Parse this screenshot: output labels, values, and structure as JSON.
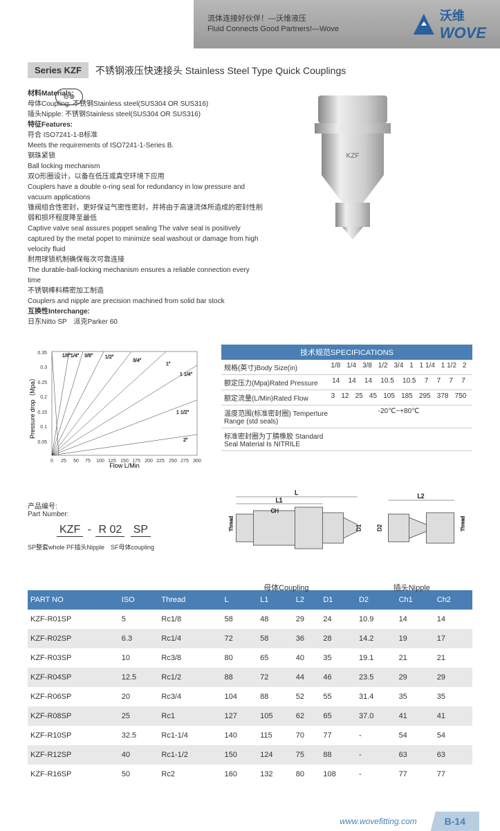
{
  "header": {
    "line1_cn": "流体连接好伙伴！—沃维液压",
    "line2_en": "Fluid Connects Good Partners!—Wove",
    "brand_cn": "沃维",
    "brand_en": "WOVE"
  },
  "title": {
    "series": "Series KZF",
    "text": "不锈钢液压快速接头 Stainless Steel Type Quick Couplings"
  },
  "materials": {
    "heading": "材料Materials:",
    "line1": "母体Coupling: 不锈钢Stainless steel(SUS304 OR SUS316)",
    "line2": "插头Nipple: 不锈钢Stainless steel(SUS304 OR SUS316)"
  },
  "features": {
    "heading": "特征Features:",
    "items": [
      "符合 ISO7241-1-B标准",
      "Meets the requirements of ISO7241-1-Series B.",
      "钢珠紧锁",
      "Ball locking mechanism",
      "双O形圈设计，以备在低压或真空环境下应用",
      "Couplers have a double o-ring seal for redundancy in low pressure and vacuum applications",
      "锥阀组合性密封，更好保证气密性密封，并将由于高速流体所造成的密封性削弱和损坏程度降至最低",
      "Captive valve seal assures poppet sealing  The valve seal is positively captured by the metal popet to minimize seal washout or damage from high velocity fluid",
      "耐用球锁机制确保每次可靠连接",
      "The durable-ball-locking mechanism ensures a reliable connection every time",
      "不锈钢棒料精密加工制造",
      "Couplers and nipple are precision machined from solid bar stock"
    ]
  },
  "interchange": {
    "heading": "互换性Interchange:",
    "text": "日东Nitto SP　派克Parker 60"
  },
  "chart": {
    "type": "line",
    "ylabel": "Pressure drop（Mpa）",
    "xlabel": "Flow L/Min",
    "ylim": [
      0,
      0.35
    ],
    "ytick_step": 0.05,
    "xlim": [
      0,
      300
    ],
    "xtick_step": 25,
    "line_labels": [
      "1/8\"",
      "1/4\"",
      "3/8\"",
      "1/2\"",
      "3/4\"",
      "1\"",
      "1 1/4\"",
      "1 1/2\"",
      "2\""
    ],
    "background_color": "#ffffff",
    "line_color": "#333333",
    "fontsize": 9
  },
  "specs": {
    "header": "技术规范SPECIFICATIONS",
    "rows": [
      {
        "label": "规格(英寸)Body Size(in)",
        "vals": [
          "1/8",
          "1/4",
          "3/8",
          "1/2",
          "3/4",
          "1",
          "1 1/4",
          "1 1/2",
          "2"
        ]
      },
      {
        "label": "额定压力(Mpa)Rated Pressure",
        "vals": [
          "14",
          "14",
          "14",
          "10.5",
          "10.5",
          "7",
          "7",
          "7",
          "7"
        ]
      },
      {
        "label": "额定流量(L/Min)Rated Flow",
        "vals": [
          "3",
          "12",
          "25",
          "45",
          "105",
          "185",
          "295",
          "378",
          "750"
        ]
      },
      {
        "label": "温度范围(标准密封圈) Temperture Range (std seals)",
        "vals": [
          "-20℃~+80℃"
        ]
      },
      {
        "label": "标准密封圈为丁腈橡胶 Standard Seal Material Is NITRILE",
        "vals": [
          ""
        ]
      }
    ]
  },
  "part_number": {
    "label_cn": "产品编号:",
    "label_en": "Part Number:",
    "segments": [
      "KZF",
      "-",
      "R 02",
      "SP"
    ],
    "note": "SP整套whole  PF插头Nipple　SF母体coupling"
  },
  "diagram": {
    "labels": {
      "l": "L",
      "l1": "L1",
      "l2": "L2",
      "ch": "CH",
      "d1": "D1",
      "d2": "D2",
      "thread": "Thread"
    },
    "bottom_left": "母体Coupling",
    "bottom_right": "插头Nipple"
  },
  "table": {
    "columns": [
      "PART NO",
      "ISO",
      "Thread",
      "L",
      "L1",
      "L2",
      "D1",
      "D2",
      "Ch1",
      "Ch2"
    ],
    "rows": [
      [
        "KZF-R01SP",
        "5",
        "Rc1/8",
        "58",
        "48",
        "29",
        "24",
        "10.9",
        "14",
        "14"
      ],
      [
        "KZF-R02SP",
        "6.3",
        "Rc1/4",
        "72",
        "58",
        "36",
        "28",
        "14.2",
        "19",
        "17"
      ],
      [
        "KZF-R03SP",
        "10",
        "Rc3/8",
        "80",
        "65",
        "40",
        "35",
        "19.1",
        "21",
        "21"
      ],
      [
        "KZF-R04SP",
        "12.5",
        "Rc1/2",
        "88",
        "72",
        "44",
        "46",
        "23.5",
        "29",
        "29"
      ],
      [
        "KZF-R06SP",
        "20",
        "Rc3/4",
        "104",
        "88",
        "52",
        "55",
        "31.4",
        "35",
        "35"
      ],
      [
        "KZF-R08SP",
        "25",
        "Rc1",
        "127",
        "105",
        "62",
        "65",
        "37.0",
        "41",
        "41"
      ],
      [
        "KZF-R10SP",
        "32.5",
        "Rc1-1/4",
        "140",
        "115",
        "70",
        "77",
        "-",
        "54",
        "54"
      ],
      [
        "KZF-R12SP",
        "40",
        "Rc1-1/2",
        "150",
        "124",
        "75",
        "88",
        "-",
        "63",
        "63"
      ],
      [
        "KZF-R16SP",
        "50",
        "Rc2",
        "160",
        "132",
        "80",
        "108",
        "-",
        "77",
        "77"
      ]
    ]
  },
  "footer": {
    "url": "www.wovefitting.com",
    "page": "B-14"
  },
  "colors": {
    "primary": "#4a7fb5",
    "header_gray": "#b8b8b8",
    "row_alt": "#e8e8e8",
    "page_badge": "#b8cde0"
  }
}
